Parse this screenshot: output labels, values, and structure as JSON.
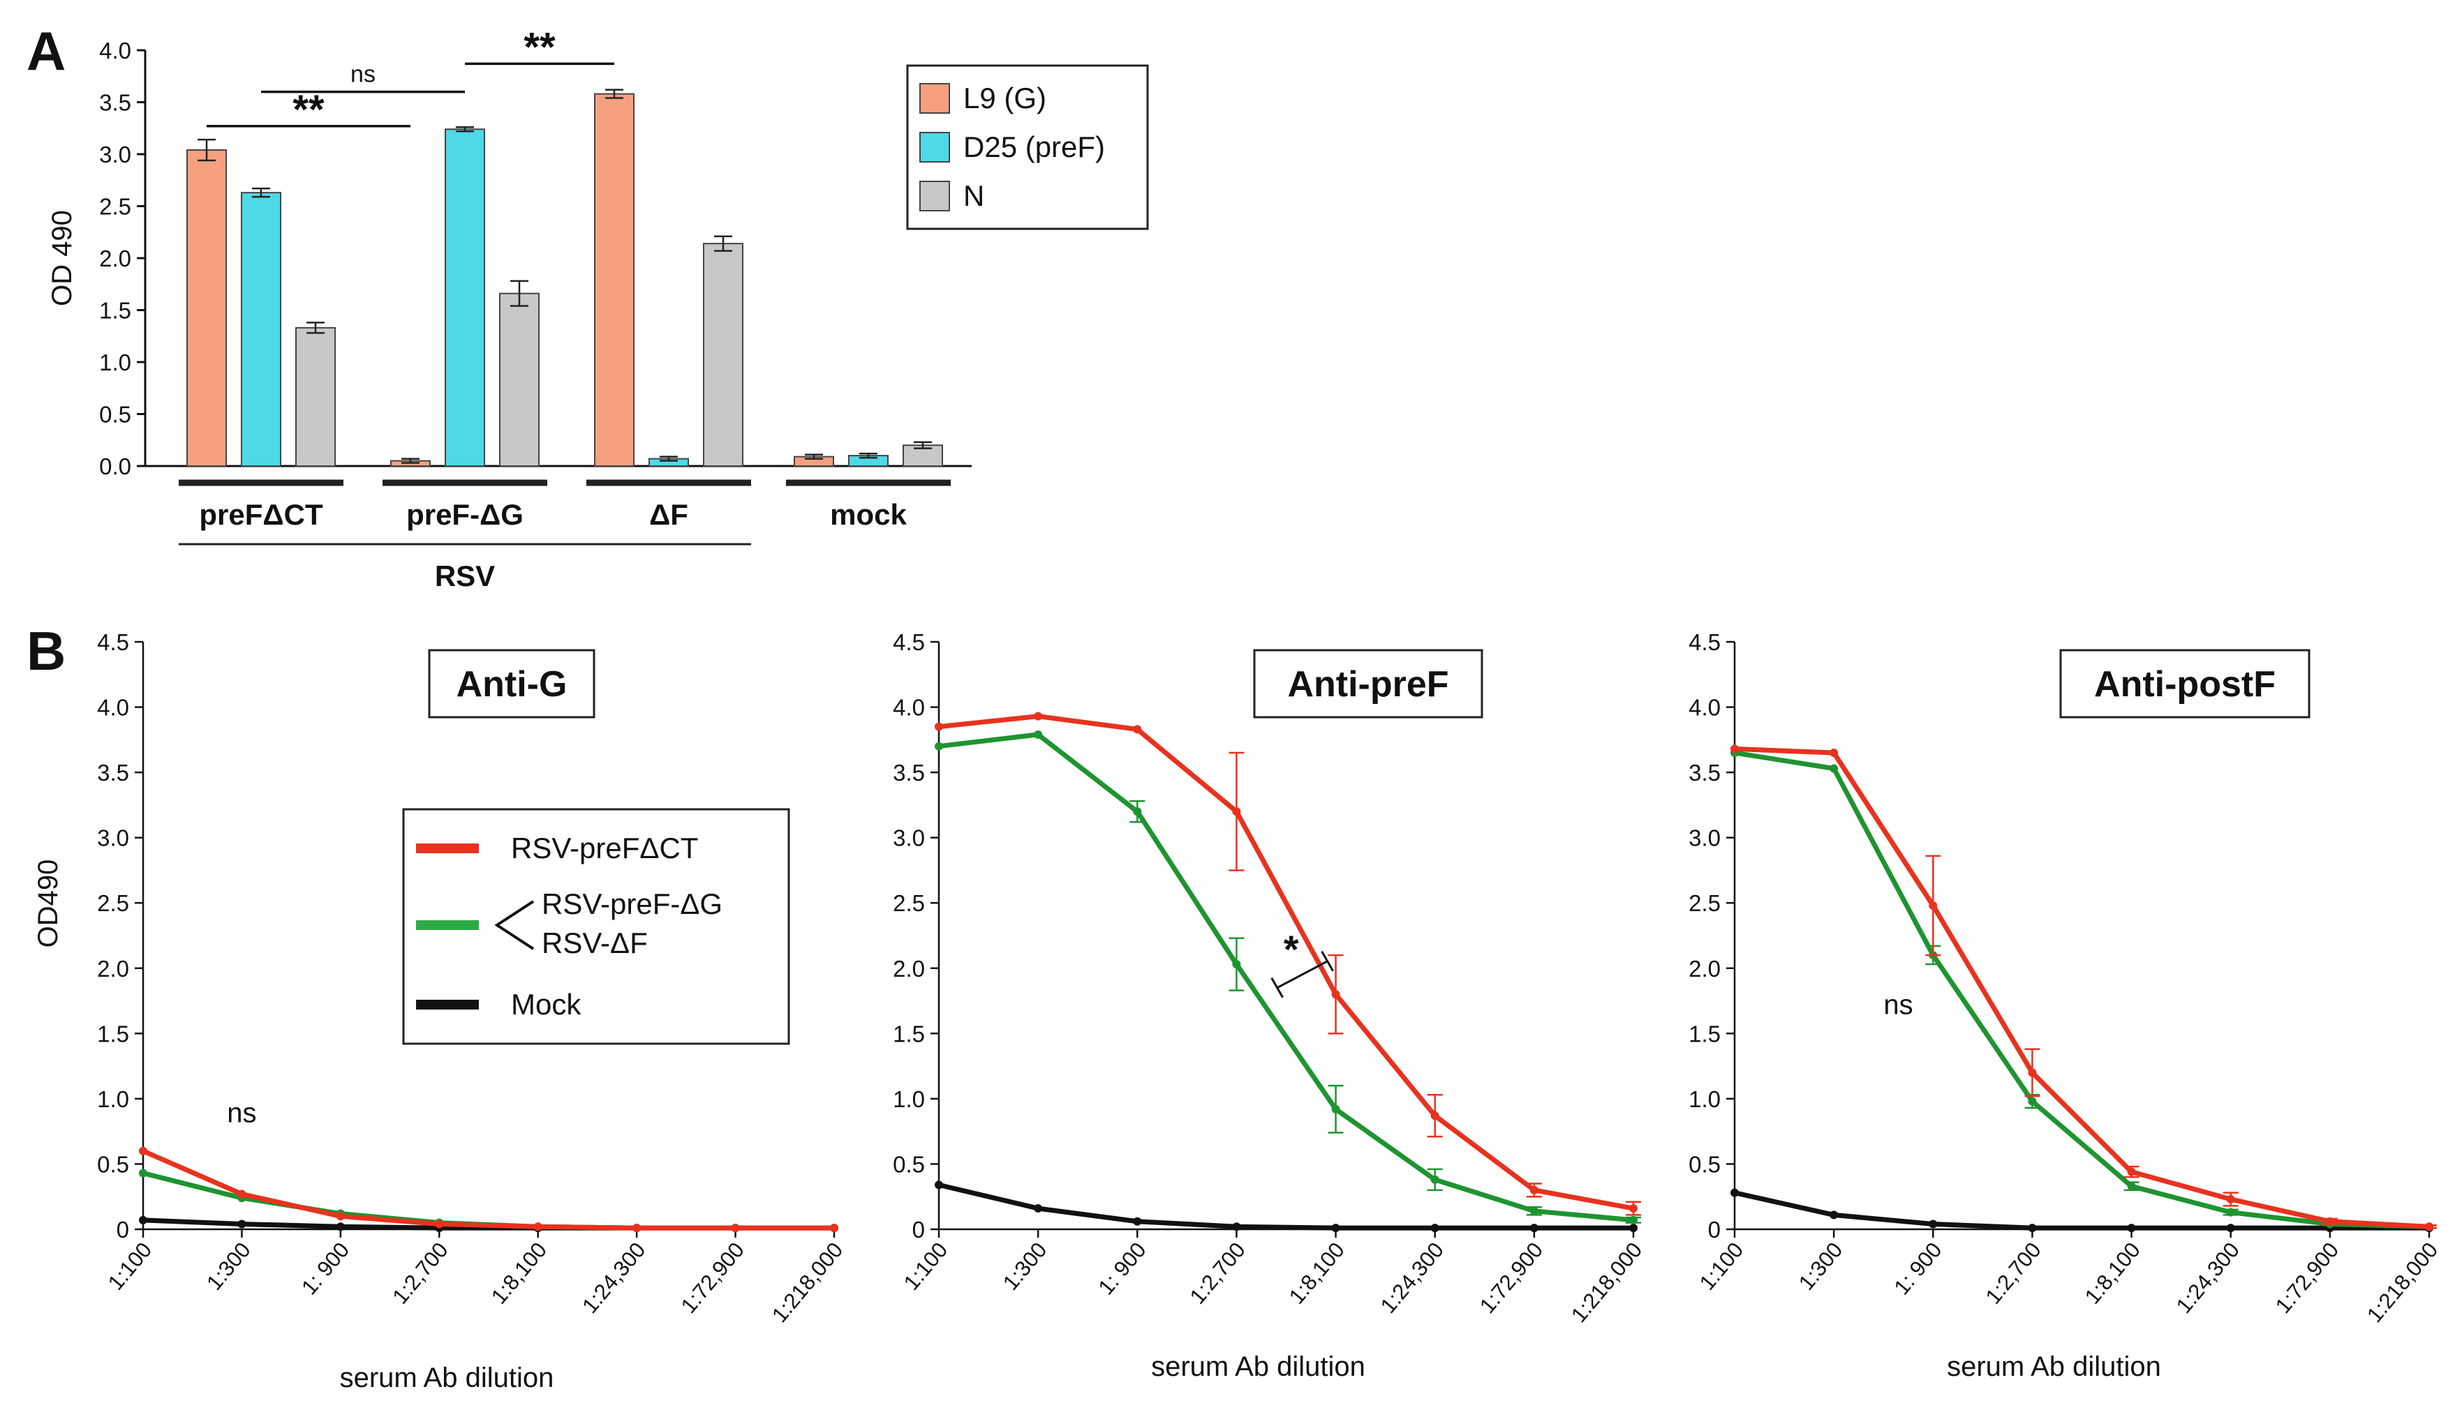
{
  "panel_a_label": "A",
  "panel_b_label": "B",
  "chart_data": [
    {
      "type": "bar",
      "ylabel": "OD 490",
      "ylim": [
        0,
        4.0
      ],
      "yticks": [
        "0.0",
        "0.5",
        "1.0",
        "1.5",
        "2.0",
        "2.5",
        "3.0",
        "3.5",
        "4.0"
      ],
      "categories": [
        "preFΔCT",
        "preF-ΔG",
        "ΔF",
        "mock"
      ],
      "group_label": "RSV",
      "series": [
        {
          "name": "L9 (G)",
          "color": "#F6A07F",
          "values": [
            3.04,
            0.05,
            3.58,
            0.09
          ],
          "errors": [
            0.1,
            0.02,
            0.04,
            0.02
          ]
        },
        {
          "name": "D25 (preF)",
          "color": "#4ED9E6",
          "values": [
            2.63,
            3.24,
            0.07,
            0.1
          ],
          "errors": [
            0.04,
            0.02,
            0.02,
            0.02
          ]
        },
        {
          "name": "N",
          "color": "#C8C8C8",
          "values": [
            1.33,
            1.66,
            2.14,
            0.2
          ],
          "errors": [
            0.05,
            0.12,
            0.07,
            0.03
          ]
        }
      ],
      "significance": [
        {
          "label": "**",
          "from": [
            0,
            0
          ],
          "to": [
            1,
            0
          ],
          "y": 3.27
        },
        {
          "label": "ns",
          "from": [
            0,
            1
          ],
          "to": [
            1,
            1
          ],
          "y": 3.6
        },
        {
          "label": "**",
          "from": [
            1,
            1
          ],
          "to": [
            2,
            0
          ],
          "y": 3.87
        }
      ]
    },
    {
      "type": "line",
      "title": "Anti-G",
      "xlabel": "serum Ab dilution",
      "ylabel": "OD490",
      "ylim": [
        0,
        4.5
      ],
      "yticks": [
        "0",
        "0.5",
        "1.0",
        "1.5",
        "2.0",
        "2.5",
        "3.0",
        "3.5",
        "4.0",
        "4.5"
      ],
      "categories": [
        "1:100",
        "1:300",
        "1: 900",
        "1:2,700",
        "1:8,100",
        "1:24,300",
        "1:72,900",
        "1:218,000"
      ],
      "series": [
        {
          "name": "RSV-preFΔCT",
          "color": "#E8321E",
          "values": [
            0.6,
            0.27,
            0.1,
            0.04,
            0.02,
            0.01,
            0.01,
            0.01
          ],
          "errors": [
            0,
            0,
            0,
            0,
            0,
            0,
            0,
            0
          ]
        },
        {
          "name": "RSV-preF-ΔG / RSV-ΔF",
          "color": "#1E9430",
          "values": [
            0.43,
            0.24,
            0.12,
            0.05,
            0.02,
            0.01,
            0.01,
            0.01
          ],
          "errors": [
            0,
            0,
            0,
            0,
            0,
            0,
            0,
            0
          ]
        },
        {
          "name": "Mock",
          "color": "#111111",
          "values": [
            0.07,
            0.04,
            0.02,
            0.01,
            0.01,
            0.01,
            0.01,
            0.01
          ],
          "errors": [
            0,
            0,
            0,
            0,
            0,
            0,
            0,
            0
          ]
        }
      ],
      "annotations": [
        {
          "text": "ns",
          "x": 1,
          "y": 0.82
        }
      ]
    },
    {
      "type": "line",
      "title": "Anti-preF",
      "xlabel": "serum Ab dilution",
      "ylim": [
        0,
        4.5
      ],
      "yticks": [
        "0",
        "0.5",
        "1.0",
        "1.5",
        "2.0",
        "2.5",
        "3.0",
        "3.5",
        "4.0",
        "4.5"
      ],
      "categories": [
        "1:100",
        "1:300",
        "1: 900",
        "1:2,700",
        "1:8,100",
        "1:24,300",
        "1:72,900",
        "1:218,000"
      ],
      "series": [
        {
          "name": "RSV-preFΔCT",
          "color": "#E8321E",
          "values": [
            3.85,
            3.93,
            3.83,
            3.2,
            1.8,
            0.87,
            0.3,
            0.16
          ],
          "errors": [
            0,
            0,
            0,
            0.45,
            0.3,
            0.16,
            0.05,
            0.05
          ]
        },
        {
          "name": "RSV-preF-ΔG / RSV-ΔF",
          "color": "#1E9430",
          "values": [
            3.7,
            3.79,
            3.2,
            2.03,
            0.92,
            0.38,
            0.14,
            0.07
          ],
          "errors": [
            0,
            0,
            0.08,
            0.2,
            0.18,
            0.08,
            0.03,
            0.02
          ]
        },
        {
          "name": "Mock",
          "color": "#111111",
          "values": [
            0.34,
            0.16,
            0.06,
            0.02,
            0.01,
            0.01,
            0.01,
            0.01
          ],
          "errors": [
            0,
            0,
            0,
            0,
            0,
            0,
            0,
            0
          ]
        }
      ],
      "annotations": [
        {
          "text": "*",
          "x": 3.48,
          "y": 2.0
        }
      ]
    },
    {
      "type": "line",
      "title": "Anti-postF",
      "xlabel": "serum Ab dilution",
      "ylim": [
        0,
        4.5
      ],
      "yticks": [
        "0",
        "0.5",
        "1.0",
        "1.5",
        "2.0",
        "2.5",
        "3.0",
        "3.5",
        "4.0",
        "4.5"
      ],
      "categories": [
        "1:100",
        "1:300",
        "1: 900",
        "1:2,700",
        "1:8,100",
        "1:24,300",
        "1:72,900",
        "1:218,000"
      ],
      "series": [
        {
          "name": "RSV-preFΔCT",
          "color": "#E8321E",
          "values": [
            3.68,
            3.65,
            2.48,
            1.2,
            0.44,
            0.23,
            0.06,
            0.02
          ],
          "errors": [
            0,
            0,
            0.38,
            0.18,
            0.04,
            0.05,
            0.02,
            0.01
          ]
        },
        {
          "name": "RSV-preF-ΔG / RSV-ΔF",
          "color": "#1E9430",
          "values": [
            3.65,
            3.53,
            2.1,
            0.98,
            0.33,
            0.13,
            0.04,
            0.02
          ],
          "errors": [
            0,
            0,
            0.07,
            0.05,
            0.03,
            0.02,
            0.01,
            0.01
          ]
        },
        {
          "name": "Mock",
          "color": "#111111",
          "values": [
            0.28,
            0.11,
            0.04,
            0.01,
            0.01,
            0.01,
            0.01,
            0.01
          ],
          "errors": [
            0,
            0,
            0,
            0,
            0,
            0,
            0,
            0
          ]
        }
      ],
      "annotations": [
        {
          "text": "ns",
          "x": 1.65,
          "y": 1.65
        }
      ]
    }
  ],
  "legend_b": {
    "items": [
      "RSV-preFΔCT",
      "RSV-preF-ΔG",
      "RSV-ΔF",
      "Mock"
    ]
  }
}
